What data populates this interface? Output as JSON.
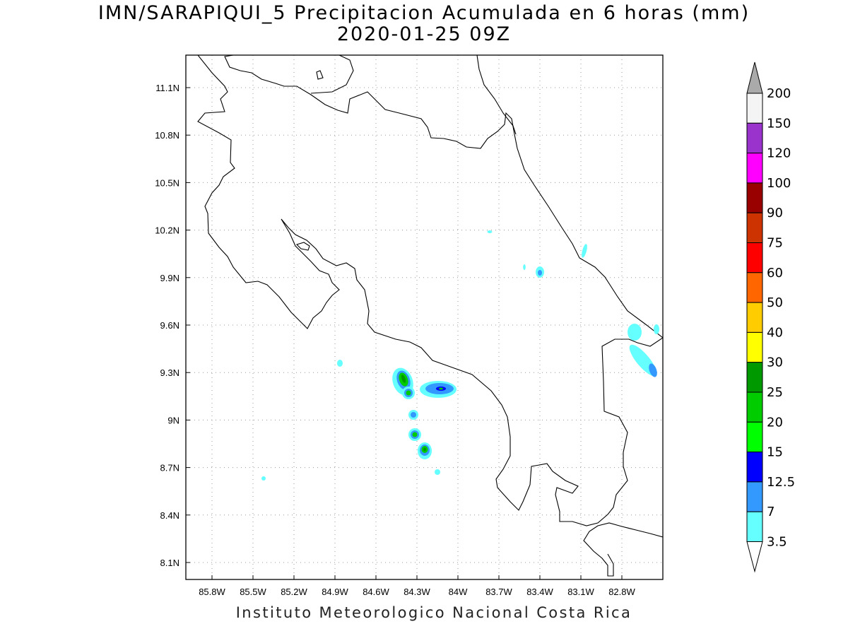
{
  "title": "IMN/SARAPIQUI_5 Precipitacion Acumulada en 6 horas (mm)",
  "subtitle": "2020-01-25 09Z",
  "footer": "Instituto Meteorologico Nacional Costa Rica",
  "map": {
    "lon_range": [
      -86.0,
      -82.6
    ],
    "lat_range": [
      8.0,
      11.3
    ],
    "lon_ticks": [
      "85.8W",
      "85.5W",
      "85.2W",
      "84.9W",
      "84.6W",
      "84.3W",
      "84W",
      "83.7W",
      "83.4W",
      "83.1W",
      "82.8W"
    ],
    "lat_ticks": [
      "11.1N",
      "10.8N",
      "10.5N",
      "10.2N",
      "9.9N",
      "9.6N",
      "9.3N",
      "9N",
      "8.7N",
      "8.4N",
      "8.1N"
    ],
    "grid": true
  },
  "colorbar": {
    "labels": [
      "200",
      "150",
      "120",
      "100",
      "90",
      "75",
      "60",
      "50",
      "40",
      "30",
      "25",
      "20",
      "15",
      "12.5",
      "7",
      "3.5"
    ],
    "colors": [
      "#f4f4f4",
      "#9933cc",
      "#ff00ff",
      "#990000",
      "#cc3300",
      "#ff0000",
      "#ff6600",
      "#ffcc00",
      "#ffff00",
      "#009900",
      "#00cc00",
      "#00ff00",
      "#0000ff",
      "#3399ff",
      "#66ffff"
    ],
    "over_color": "#aaaaaa",
    "under_color": "#ffffff"
  }
}
